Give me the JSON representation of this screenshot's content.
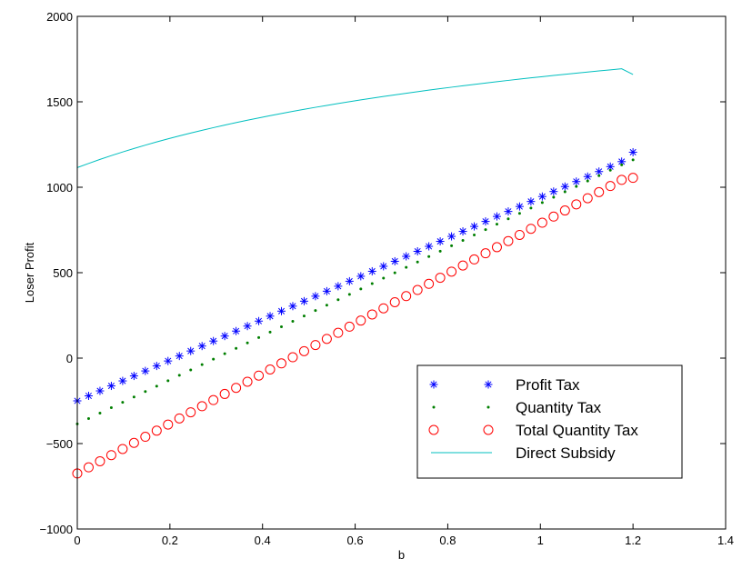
{
  "chart_data": {
    "type": "line",
    "title": "",
    "xlabel": "b",
    "ylabel": "Loser Profit",
    "xlim": [
      0,
      1.4
    ],
    "ylim": [
      -1000,
      2000
    ],
    "x_ticks": [
      0,
      0.2,
      0.4,
      0.6,
      0.8,
      1,
      1.2,
      1.4
    ],
    "y_ticks": [
      -1000,
      -500,
      0,
      500,
      1000,
      1500,
      2000
    ],
    "x_tick_labels": [
      "0",
      "0.2",
      "0.4",
      "0.6",
      "0.8",
      "1",
      "1.2",
      "1.4"
    ],
    "y_tick_labels": [
      "−1000",
      "−500",
      "0",
      "500",
      "1000",
      "1500",
      "2000"
    ],
    "grid": false,
    "legend_position": "bottom-right",
    "x": [
      0,
      0.02449,
      0.04898,
      0.07347,
      0.09796,
      0.12245,
      0.14694,
      0.17143,
      0.19592,
      0.22041,
      0.2449,
      0.26939,
      0.29388,
      0.31837,
      0.34286,
      0.36735,
      0.39184,
      0.41633,
      0.44082,
      0.46531,
      0.4898,
      0.51429,
      0.53878,
      0.56327,
      0.58776,
      0.61224,
      0.63673,
      0.66122,
      0.68571,
      0.7102,
      0.73469,
      0.75918,
      0.78367,
      0.80816,
      0.83265,
      0.85714,
      0.88163,
      0.90612,
      0.93061,
      0.9551,
      0.97959,
      1.00408,
      1.02857,
      1.05306,
      1.07755,
      1.10204,
      1.12653,
      1.15102,
      1.17551,
      1.2
    ],
    "series": [
      {
        "name": "Profit Tax",
        "marker": "asterisk",
        "color": "#0000ff",
        "values": [
          -250,
          -220.8,
          -191.7,
          -162.5,
          -133.3,
          -104.2,
          -75,
          -45.8,
          -16.7,
          12.5,
          41.7,
          70.8,
          100,
          129.2,
          158.3,
          187.5,
          216.7,
          245.8,
          275,
          304.2,
          333.3,
          362.5,
          391.7,
          420.8,
          450,
          479.2,
          508.3,
          537.5,
          566.7,
          595.8,
          625,
          654.2,
          683.3,
          712.5,
          741.7,
          770.8,
          800,
          829.2,
          858.3,
          887.5,
          916.7,
          945.8,
          975,
          1004.2,
          1033.3,
          1062.5,
          1091.7,
          1120.8,
          1150,
          1205
        ]
      },
      {
        "name": "Quantity Tax",
        "marker": "dot",
        "color": "#007f00",
        "values": [
          -385,
          -353.4,
          -321.8,
          -290.2,
          -258.7,
          -227.1,
          -195.5,
          -163.9,
          -132.3,
          -100.7,
          -69.1,
          -37.6,
          -6,
          25.6,
          57.2,
          88.8,
          120.4,
          152,
          183.6,
          215.1,
          246.7,
          278.3,
          309.9,
          341.5,
          373.1,
          404.7,
          436.2,
          467.8,
          499.4,
          531,
          562.6,
          594.2,
          625.8,
          657.3,
          688.9,
          720.5,
          752.1,
          783.7,
          815.3,
          846.9,
          878.5,
          910,
          941.6,
          973.2,
          1004.8,
          1036.4,
          1068,
          1099.6,
          1131.1,
          1160
        ]
      },
      {
        "name": "Total Quantity Tax",
        "marker": "circle",
        "color": "#ff0000",
        "values": [
          -675,
          -639.2,
          -603.4,
          -567.6,
          -531.8,
          -496,
          -460.2,
          -424.5,
          -388.7,
          -352.9,
          -317.1,
          -281.3,
          -245.5,
          -209.7,
          -173.9,
          -138.1,
          -102.3,
          -66.5,
          -30.7,
          5.1,
          40.8,
          76.6,
          112.4,
          148.2,
          184,
          219.8,
          255.6,
          291.4,
          327.2,
          363,
          398.8,
          434.6,
          470.4,
          506.1,
          541.9,
          577.7,
          613.5,
          649.3,
          685.1,
          720.9,
          756.7,
          792.5,
          828.3,
          864.1,
          899.9,
          935.7,
          971.4,
          1007.2,
          1043,
          1055
        ]
      },
      {
        "name": "Direct Subsidy",
        "marker": "line",
        "color": "#00bfbf",
        "values": [
          1115,
          1139.4,
          1162.8,
          1185.1,
          1206.4,
          1226.8,
          1246.4,
          1265.1,
          1283.2,
          1300.5,
          1317.2,
          1333.3,
          1348.8,
          1363.8,
          1378.2,
          1392.3,
          1405.8,
          1419,
          1431.7,
          1444,
          1456,
          1467.7,
          1479,
          1490,
          1500.7,
          1511.1,
          1521.2,
          1531.1,
          1540.7,
          1550.1,
          1559.3,
          1568.2,
          1576.9,
          1585.4,
          1593.8,
          1601.9,
          1609.9,
          1617.7,
          1625.3,
          1632.7,
          1640,
          1647.2,
          1654.2,
          1661,
          1667.7,
          1674.3,
          1680.8,
          1687.1,
          1693.3,
          1660
        ]
      }
    ]
  }
}
